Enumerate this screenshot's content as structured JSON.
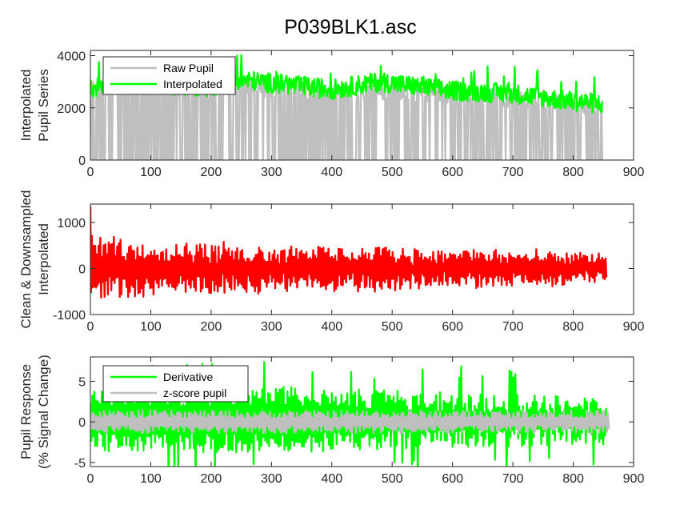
{
  "figure": {
    "title": "P039BLK1.asc"
  },
  "chart_data": [
    {
      "type": "line",
      "ylabel": [
        "Interpolated",
        "Pupil Series"
      ],
      "xlim": [
        0,
        900
      ],
      "ylim": [
        0,
        4200
      ],
      "xticks": [
        0,
        100,
        200,
        300,
        400,
        500,
        600,
        700,
        800,
        900
      ],
      "yticks": [
        0,
        2000,
        4000
      ],
      "legend": {
        "placement": "top-left",
        "entries": [
          "Raw Pupil",
          "Interpolated"
        ]
      },
      "series": [
        {
          "name": "Raw Pupil",
          "color": "#bfbfbf",
          "style": "dropout",
          "x_range": [
            0,
            848
          ],
          "baseline": [
            [
              0,
              2600
            ],
            [
              50,
              2900
            ],
            [
              120,
              2750
            ],
            [
              200,
              2650
            ],
            [
              240,
              2900
            ],
            [
              300,
              2750
            ],
            [
              400,
              2550
            ],
            [
              500,
              2650
            ],
            [
              600,
              2450
            ],
            [
              700,
              2350
            ],
            [
              780,
              2150
            ],
            [
              848,
              2000
            ]
          ],
          "noise": 350
        },
        {
          "name": "Interpolated",
          "color": "#00ff00",
          "x_range": [
            0,
            848
          ],
          "baseline": [
            [
              0,
              2700
            ],
            [
              30,
              3000
            ],
            [
              100,
              2900
            ],
            [
              200,
              2800
            ],
            [
              240,
              3100
            ],
            [
              300,
              2950
            ],
            [
              400,
              2700
            ],
            [
              480,
              3000
            ],
            [
              600,
              2650
            ],
            [
              700,
              2550
            ],
            [
              780,
              2300
            ],
            [
              848,
              2150
            ]
          ],
          "noise": 380
        }
      ]
    },
    {
      "type": "line",
      "ylabel": [
        "Clean & Downsampled",
        "Interpolated"
      ],
      "xlim": [
        0,
        900
      ],
      "ylim": [
        -1000,
        1400
      ],
      "xticks": [
        0,
        100,
        200,
        300,
        400,
        500,
        600,
        700,
        800,
        900
      ],
      "yticks": [
        -1000,
        0,
        1000
      ],
      "series": [
        {
          "name": "",
          "color": "#ff0000",
          "x_range": [
            0,
            855
          ],
          "start_value": 1350,
          "amplitude": [
            [
              0,
              700
            ],
            [
              100,
              600
            ],
            [
              300,
              500
            ],
            [
              500,
              450
            ],
            [
              700,
              380
            ],
            [
              855,
              300
            ]
          ]
        }
      ]
    },
    {
      "type": "line",
      "ylabel": [
        "Pupil Response",
        "(% Signal Change)"
      ],
      "xlim": [
        0,
        900
      ],
      "ylim": [
        -5.5,
        8
      ],
      "xticks": [
        0,
        100,
        200,
        300,
        400,
        500,
        600,
        700,
        800,
        900
      ],
      "yticks": [
        -5,
        0,
        5
      ],
      "legend": {
        "placement": "top-left",
        "entries": [
          "Derivative",
          "z-score pupil"
        ]
      },
      "series": [
        {
          "name": "Derivative",
          "color": "#00ff00",
          "x_range": [
            0,
            855
          ],
          "upper_band": [
            [
              0,
              3.0
            ],
            [
              300,
              3.2
            ],
            [
              600,
              2.4
            ],
            [
              855,
              1.8
            ]
          ],
          "lower_band": [
            [
              0,
              -2.4
            ],
            [
              300,
              -2.6
            ],
            [
              600,
              -2.0
            ],
            [
              855,
              -1.6
            ]
          ]
        },
        {
          "name": "z-score pupil",
          "color": "#bfbfbf",
          "x_range": [
            0,
            860
          ],
          "amplitude": 1.4
        }
      ]
    }
  ]
}
